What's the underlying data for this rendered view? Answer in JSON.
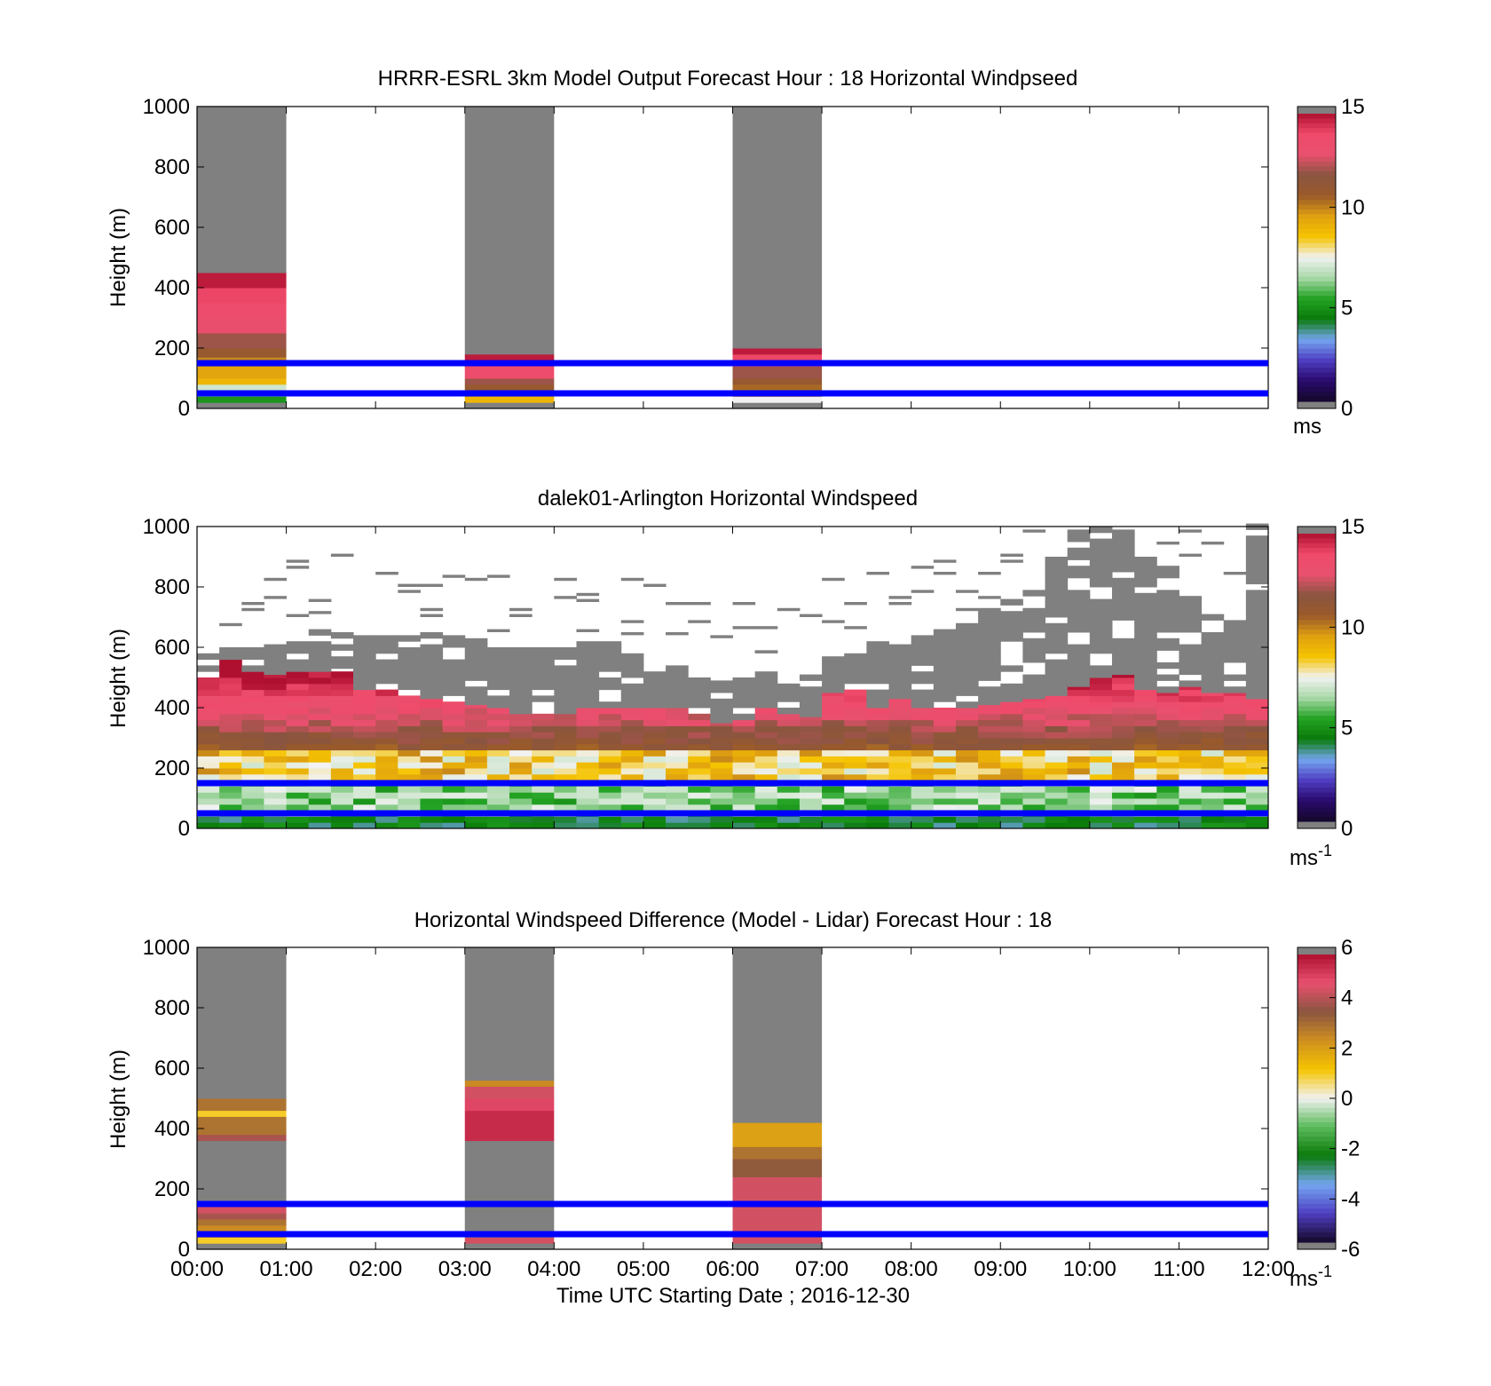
{
  "colors": {
    "missing": "#808080",
    "overlay_line": "#0000ff",
    "speed_scale": [
      "#14082a",
      "#2a0a6e",
      "#4f3fc2",
      "#74a6f0",
      "#0a7a0a",
      "#23a323",
      "#a8d8a8",
      "#f2f2f2",
      "#f5c400",
      "#e0a010",
      "#9a5a2a",
      "#8a5540",
      "#e8506e",
      "#f04a6a",
      "#b01030"
    ],
    "diff_scale": [
      "#14082a",
      "#4f3fc2",
      "#74a6f0",
      "#0a7a0a",
      "#5aba5a",
      "#f2f2f2",
      "#f5c400",
      "#d09020",
      "#8a5540",
      "#e8506e",
      "#b01030"
    ]
  },
  "chart_data": [
    {
      "type": "heatmap",
      "title": "HRRR-ESRL 3km Model Output   Forecast Hour : 18 Horizontal Windpseed",
      "xlabel": "",
      "ylabel": "Height (m)",
      "xlim": [
        0,
        12
      ],
      "ylim": [
        0,
        1000
      ],
      "x_ticks": [
        0,
        1,
        2,
        3,
        4,
        5,
        6,
        7,
        8,
        9,
        10,
        11,
        12
      ],
      "x_tick_labels": [],
      "y_ticks": [
        0,
        200,
        400,
        600,
        800,
        1000
      ],
      "y_tick_labels": [
        "0",
        "200",
        "400",
        "600",
        "800",
        "1000"
      ],
      "colorbar": {
        "limits": [
          0,
          15
        ],
        "ticks": [
          0,
          5,
          10,
          15
        ],
        "tick_labels": [
          "0",
          "5",
          "10",
          "15"
        ],
        "unit_label": "ms"
      },
      "reference_lines_m": [
        50,
        150
      ],
      "columns": [
        {
          "t_start": 0,
          "t_end": 1,
          "top_valid_m": 450,
          "layers": [
            [
              0,
              20,
              null
            ],
            [
              20,
              40,
              5
            ],
            [
              40,
              60,
              6
            ],
            [
              60,
              80,
              7
            ],
            [
              80,
              100,
              9
            ],
            [
              100,
              140,
              9.5
            ],
            [
              140,
              170,
              10
            ],
            [
              170,
              200,
              11
            ],
            [
              200,
              250,
              12
            ],
            [
              250,
              300,
              13
            ],
            [
              300,
              350,
              13.5
            ],
            [
              350,
              400,
              14
            ],
            [
              400,
              450,
              14.8
            ],
            [
              450,
              1000,
              null
            ]
          ]
        },
        {
          "t_start": 3,
          "t_end": 4,
          "top_valid_m": 180,
          "layers": [
            [
              0,
              20,
              null
            ],
            [
              20,
              40,
              9
            ],
            [
              40,
              60,
              10
            ],
            [
              60,
              80,
              11
            ],
            [
              80,
              100,
              12
            ],
            [
              100,
              140,
              13.5
            ],
            [
              140,
              160,
              14
            ],
            [
              160,
              180,
              14.8
            ],
            [
              180,
              1000,
              null
            ]
          ]
        },
        {
          "t_start": 6,
          "t_end": 7,
          "top_valid_m": 200,
          "layers": [
            [
              0,
              20,
              null
            ],
            [
              20,
              40,
              7.5
            ],
            [
              40,
              60,
              10
            ],
            [
              60,
              80,
              10.5
            ],
            [
              80,
              100,
              11
            ],
            [
              100,
              140,
              12
            ],
            [
              140,
              160,
              13
            ],
            [
              160,
              180,
              14
            ],
            [
              180,
              200,
              14.8
            ],
            [
              200,
              1000,
              null
            ]
          ]
        }
      ]
    },
    {
      "type": "heatmap",
      "title": "dalek01-Arlington  Horizontal Windspeed",
      "xlabel": "",
      "ylabel": "Height (m)",
      "xlim": [
        0,
        12
      ],
      "ylim": [
        0,
        1000
      ],
      "x_ticks": [
        0,
        1,
        2,
        3,
        4,
        5,
        6,
        7,
        8,
        9,
        10,
        11,
        12
      ],
      "x_tick_labels": [],
      "y_ticks": [
        0,
        200,
        400,
        600,
        800,
        1000
      ],
      "y_tick_labels": [
        "0",
        "200",
        "400",
        "600",
        "800",
        "1000"
      ],
      "colorbar": {
        "limits": [
          0,
          15
        ],
        "ticks": [
          0,
          5,
          10,
          15
        ],
        "tick_labels": [
          "0",
          "5",
          "10",
          "15"
        ],
        "unit_label": "ms",
        "unit_exponent": "-1"
      },
      "reference_lines_m": [
        50,
        150
      ],
      "profile_time_step_h": 0.25,
      "profile_top_valid_m": [
        500,
        560,
        520,
        510,
        520,
        520,
        510,
        460,
        460,
        440,
        430,
        420,
        410,
        400,
        380,
        380,
        380,
        400,
        400,
        400,
        400,
        400,
        380,
        350,
        360,
        400,
        380,
        370,
        450,
        460,
        400,
        430,
        400,
        400,
        400,
        410,
        420,
        430,
        440,
        470,
        500,
        510,
        460,
        450,
        470,
        450,
        450,
        430
      ],
      "cloud_top_m": [
        580,
        590,
        600,
        600,
        640,
        650,
        660,
        660,
        640,
        640,
        640,
        630,
        620,
        610,
        600,
        590,
        600,
        610,
        620,
        580,
        560,
        540,
        500,
        490,
        500,
        520,
        500,
        500,
        560,
        600,
        620,
        600,
        640,
        660,
        680,
        720,
        760,
        800,
        900,
        980,
        1000,
        1000,
        900,
        860,
        760,
        700,
        680,
        1000
      ]
    },
    {
      "type": "heatmap",
      "title": "Horizontal Windspeed Difference (Model - Lidar) Forecast Hour : 18",
      "xlabel": "Time UTC  Starting Date ; 2016-12-30",
      "ylabel": "Height (m)",
      "xlim": [
        0,
        12
      ],
      "ylim": [
        0,
        1000
      ],
      "x_ticks": [
        0,
        1,
        2,
        3,
        4,
        5,
        6,
        7,
        8,
        9,
        10,
        11,
        12
      ],
      "x_tick_labels": [
        "00:00",
        "01:00",
        "02:00",
        "03:00",
        "04:00",
        "05:00",
        "06:00",
        "07:00",
        "08:00",
        "09:00",
        "10:00",
        "11:00",
        "12:00"
      ],
      "y_ticks": [
        0,
        200,
        400,
        600,
        800,
        1000
      ],
      "y_tick_labels": [
        "0",
        "200",
        "400",
        "600",
        "800",
        "1000"
      ],
      "colorbar": {
        "limits": [
          -6,
          6
        ],
        "ticks": [
          -6,
          -4,
          -2,
          0,
          2,
          4,
          6
        ],
        "tick_labels": [
          "-6",
          "-4",
          "-2",
          "0",
          "2",
          "4",
          "6"
        ],
        "unit_label": "ms",
        "unit_exponent": "-1"
      },
      "reference_lines_m": [
        50,
        150
      ],
      "columns": [
        {
          "t_start": 0,
          "t_end": 1,
          "layers": [
            [
              0,
              20,
              null
            ],
            [
              20,
              40,
              1
            ],
            [
              40,
              60,
              2
            ],
            [
              60,
              80,
              2.5
            ],
            [
              80,
              100,
              3
            ],
            [
              100,
              120,
              4
            ],
            [
              120,
              140,
              4.5
            ],
            [
              140,
              160,
              5
            ],
            [
              160,
              360,
              null
            ],
            [
              360,
              380,
              4
            ],
            [
              380,
              440,
              3
            ],
            [
              440,
              460,
              1
            ],
            [
              460,
              500,
              3
            ],
            [
              500,
              1000,
              null
            ]
          ]
        },
        {
          "t_start": 3,
          "t_end": 4,
          "layers": [
            [
              0,
              20,
              null
            ],
            [
              20,
              40,
              4.5
            ],
            [
              40,
              360,
              null
            ],
            [
              360,
              460,
              5.5
            ],
            [
              460,
              500,
              5
            ],
            [
              500,
              540,
              4.5
            ],
            [
              540,
              560,
              2.5
            ],
            [
              560,
              1000,
              null
            ]
          ]
        },
        {
          "t_start": 6,
          "t_end": 7,
          "layers": [
            [
              0,
              20,
              null
            ],
            [
              20,
              240,
              4.5
            ],
            [
              240,
              300,
              3.5
            ],
            [
              300,
              340,
              3
            ],
            [
              340,
              420,
              2
            ],
            [
              420,
              1000,
              null
            ]
          ]
        }
      ]
    }
  ]
}
